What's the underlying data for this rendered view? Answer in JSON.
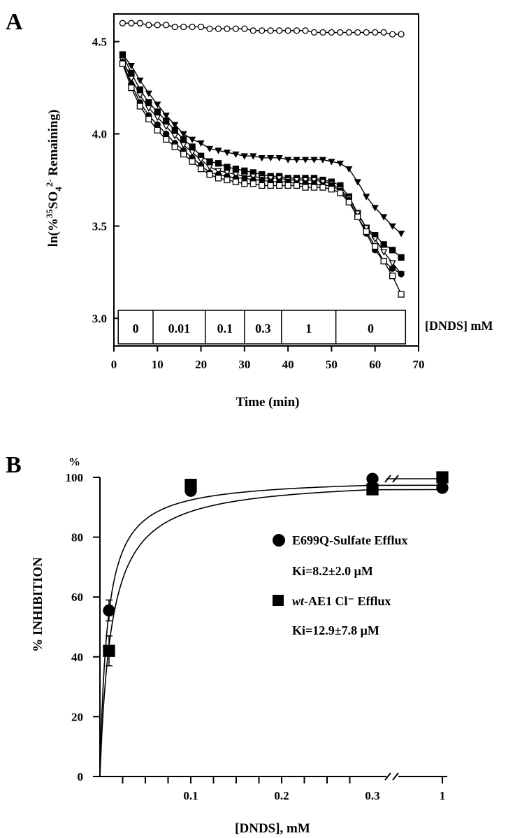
{
  "chart_data": [
    {
      "panel": "A",
      "type": "line",
      "xlabel": "Time (min)",
      "ylabel": "ln(% 35SO42- Remaining)",
      "xlim": [
        0,
        70
      ],
      "ylim": [
        2.85,
        4.65
      ],
      "x_ticks": [
        0,
        10,
        20,
        30,
        40,
        50,
        60,
        70
      ],
      "y_ticks": [
        3.0,
        3.5,
        4.0,
        4.5
      ],
      "y_tick_labels": [
        "3.0",
        "3.5",
        "4.0",
        "4.5"
      ],
      "concentration_label": "[DNDS] mM",
      "concentration_steps": [
        {
          "label": "0",
          "from": 1,
          "to": 9
        },
        {
          "label": "0.01",
          "from": 9,
          "to": 21
        },
        {
          "label": "0.1",
          "from": 21,
          "to": 30
        },
        {
          "label": "0.3",
          "from": 30,
          "to": 38.5
        },
        {
          "label": "1",
          "from": 38.5,
          "to": 51
        },
        {
          "label": "0",
          "from": 51,
          "to": 67
        }
      ],
      "x": [
        2,
        4,
        6,
        8,
        10,
        12,
        14,
        16,
        18,
        20,
        22,
        24,
        26,
        28,
        30,
        32,
        34,
        36,
        38,
        40,
        42,
        44,
        46,
        48,
        50,
        52,
        54,
        56,
        58,
        60,
        62,
        64,
        66
      ],
      "series": [
        {
          "marker": "open-circle",
          "values": [
            4.6,
            4.6,
            4.6,
            4.59,
            4.59,
            4.59,
            4.58,
            4.58,
            4.58,
            4.58,
            4.57,
            4.57,
            4.57,
            4.57,
            4.57,
            4.56,
            4.56,
            4.56,
            4.56,
            4.56,
            4.56,
            4.56,
            4.55,
            4.55,
            4.55,
            4.55,
            4.55,
            4.55,
            4.55,
            4.55,
            4.55,
            4.54,
            4.54
          ]
        },
        {
          "marker": "filled-triangle-down",
          "values": [
            4.43,
            4.37,
            4.29,
            4.22,
            4.16,
            4.1,
            4.05,
            4.0,
            3.97,
            3.95,
            3.92,
            3.91,
            3.9,
            3.89,
            3.88,
            3.88,
            3.87,
            3.87,
            3.87,
            3.86,
            3.86,
            3.86,
            3.86,
            3.86,
            3.85,
            3.84,
            3.81,
            3.74,
            3.66,
            3.6,
            3.55,
            3.5,
            3.46
          ]
        },
        {
          "marker": "filled-square",
          "values": [
            4.43,
            4.33,
            4.24,
            4.17,
            4.12,
            4.07,
            4.02,
            3.97,
            3.93,
            3.88,
            3.85,
            3.84,
            3.82,
            3.81,
            3.8,
            3.79,
            3.78,
            3.77,
            3.77,
            3.76,
            3.76,
            3.76,
            3.76,
            3.75,
            3.74,
            3.72,
            3.66,
            3.57,
            3.49,
            3.45,
            3.4,
            3.37,
            3.33
          ]
        },
        {
          "marker": "open-triangle-down",
          "values": [
            4.4,
            4.3,
            4.21,
            4.14,
            4.09,
            4.04,
            3.99,
            3.94,
            3.9,
            3.86,
            3.82,
            3.8,
            3.79,
            3.78,
            3.77,
            3.77,
            3.76,
            3.76,
            3.76,
            3.75,
            3.75,
            3.75,
            3.75,
            3.74,
            3.73,
            3.7,
            3.65,
            3.57,
            3.49,
            3.43,
            3.36,
            3.3,
            3.24
          ]
        },
        {
          "marker": "filled-circle",
          "values": [
            4.39,
            4.27,
            4.17,
            4.1,
            4.05,
            4.0,
            3.95,
            3.91,
            3.87,
            3.83,
            3.79,
            3.78,
            3.77,
            3.76,
            3.76,
            3.75,
            3.75,
            3.74,
            3.74,
            3.74,
            3.73,
            3.73,
            3.73,
            3.72,
            3.72,
            3.69,
            3.64,
            3.55,
            3.46,
            3.37,
            3.31,
            3.27,
            3.24
          ]
        },
        {
          "marker": "open-square",
          "values": [
            4.38,
            4.25,
            4.15,
            4.08,
            4.02,
            3.97,
            3.93,
            3.89,
            3.85,
            3.81,
            3.78,
            3.76,
            3.75,
            3.74,
            3.73,
            3.73,
            3.72,
            3.72,
            3.72,
            3.72,
            3.72,
            3.71,
            3.71,
            3.71,
            3.7,
            3.68,
            3.63,
            3.55,
            3.47,
            3.39,
            3.31,
            3.23,
            3.13
          ]
        }
      ]
    },
    {
      "panel": "B",
      "type": "scatter",
      "xlabel": "[DNDS], mM",
      "ylabel": "% INHIBITION",
      "y_unit": "%",
      "ylim": [
        0,
        100
      ],
      "y_ticks": [
        0,
        20,
        40,
        60,
        80,
        100
      ],
      "x_tick_labels": [
        "0.1",
        "0.2",
        "0.3",
        "1"
      ],
      "axis_break": "between 0.3 and 1",
      "series": [
        {
          "name": "E699Q-Sulfate Efflux",
          "marker": "filled-circle",
          "ki": "Ki=8.2±2.0 μM",
          "x": [
            0.01,
            0.1,
            0.3,
            1
          ],
          "values": [
            55.5,
            95.5,
            99.5,
            96.5
          ],
          "error": [
            3.5,
            0,
            0,
            0
          ]
        },
        {
          "name": "wt-AE1 Cl⁻ Efflux",
          "marker": "filled-square",
          "ki": "Ki=12.9±7.8 μM",
          "x": [
            0.01,
            0.1,
            0.3,
            1
          ],
          "values": [
            42,
            97.5,
            96,
            100
          ],
          "error": [
            5,
            0,
            0,
            0
          ]
        }
      ],
      "fit_ki_um": [
        8.2,
        12.9
      ]
    }
  ],
  "panels": {
    "a": {
      "letter": "A"
    },
    "b": {
      "letter": "B"
    }
  }
}
